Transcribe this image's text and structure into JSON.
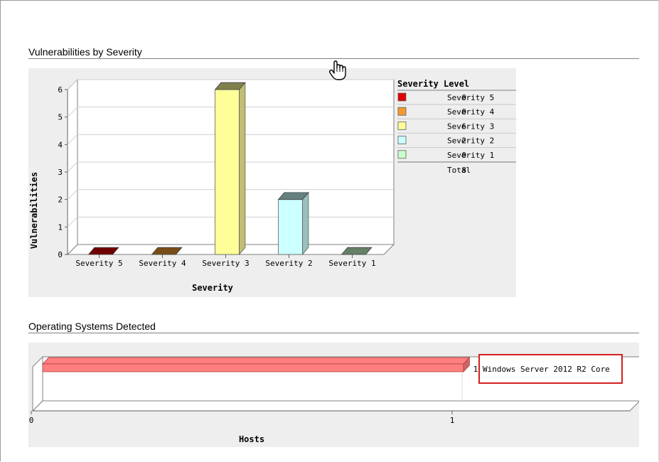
{
  "sections": {
    "vulnerabilities_title": "Vulnerabilities by Severity",
    "os_title": "Operating Systems Detected"
  },
  "chart_data": [
    {
      "type": "bar",
      "categories": [
        "Severity 5",
        "Severity 4",
        "Severity 3",
        "Severity 2",
        "Severity 1"
      ],
      "values": [
        0,
        0,
        6,
        2,
        0
      ],
      "xlabel": "Severity",
      "ylabel": "Vulnerabilities",
      "ylim": [
        0,
        6
      ],
      "yticks": [
        "0",
        "1",
        "2",
        "3",
        "4",
        "5",
        "6"
      ],
      "grid": true,
      "colors": [
        "#e00000",
        "#f29a30",
        "#ffff99",
        "#ccffff",
        "#ccffcc"
      ],
      "legend": {
        "title": "Severity Level",
        "placement": "right",
        "entries": [
          {
            "count": "0",
            "label": "Severity 5",
            "color": "#e00000"
          },
          {
            "count": "0",
            "label": "Severity 4",
            "color": "#f29a30"
          },
          {
            "count": "6",
            "label": "Severity 3",
            "color": "#ffff99"
          },
          {
            "count": "2",
            "label": "Severity 2",
            "color": "#ccffff"
          },
          {
            "count": "0",
            "label": "Severity 1",
            "color": "#ccffcc"
          }
        ],
        "total_count": "8",
        "total_label": "Total"
      }
    },
    {
      "type": "bar",
      "orientation": "horizontal",
      "categories": [
        "Windows Server 2012 R2 Core"
      ],
      "values": [
        1
      ],
      "value_labels": [
        "1"
      ],
      "xlabel": "Hosts",
      "xlim": [
        0,
        1
      ],
      "xticks": [
        "0",
        "1"
      ],
      "color": "#ff7f7f"
    }
  ]
}
